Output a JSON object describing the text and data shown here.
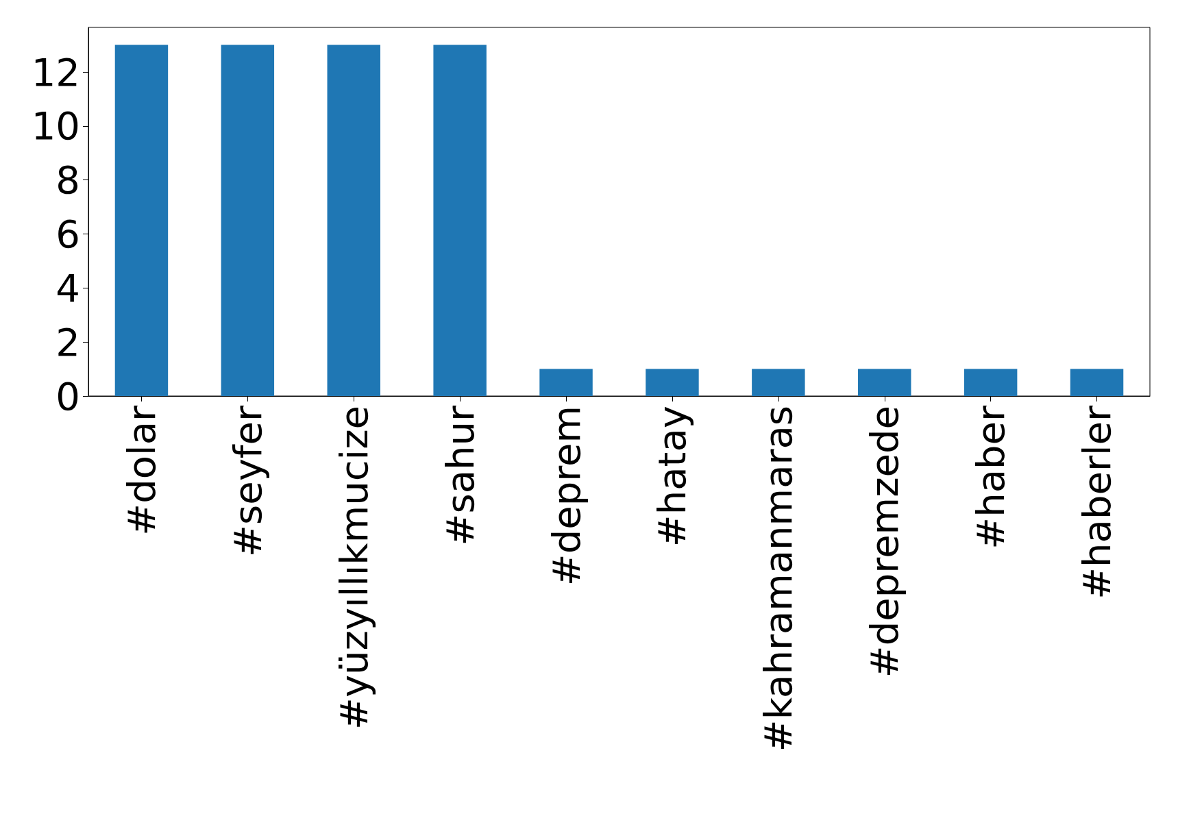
{
  "chart_data": {
    "type": "bar",
    "categories": [
      "#dolar",
      "#seyfer",
      "#yüzyıllıkmucize",
      "#sahur",
      "#deprem",
      "#hatay",
      "#kahramanmaras",
      "#depremzede",
      "#haber",
      "#haberler"
    ],
    "values": [
      13,
      13,
      13,
      13,
      1,
      1,
      1,
      1,
      1,
      1
    ],
    "color": "#1f77b4",
    "ylim": [
      0,
      13.65
    ],
    "yticks": [
      0,
      2,
      4,
      6,
      8,
      10,
      12
    ],
    "grid": false
  }
}
